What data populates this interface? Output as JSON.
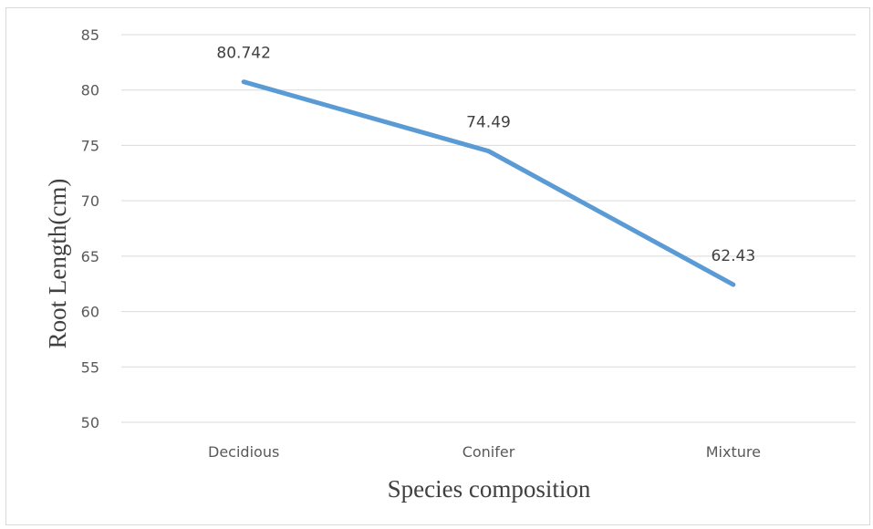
{
  "chart_data": {
    "type": "line",
    "title": "",
    "xlabel": "Species composition",
    "ylabel": "Root Length(cm)",
    "categories": [
      "Decidious",
      "Conifer",
      "Mixture"
    ],
    "series": [
      {
        "values": [
          80.742,
          74.49,
          62.43
        ],
        "labels": [
          "80.742",
          "74.49",
          "62.43"
        ]
      }
    ],
    "ylim": [
      50,
      85
    ],
    "yticks": [
      50,
      55,
      60,
      65,
      70,
      75,
      80,
      85
    ],
    "grid": true,
    "legend": "none",
    "colors": {
      "line": "#5b9bd5",
      "grid": "#d9d9d9",
      "text": "#595959"
    }
  }
}
